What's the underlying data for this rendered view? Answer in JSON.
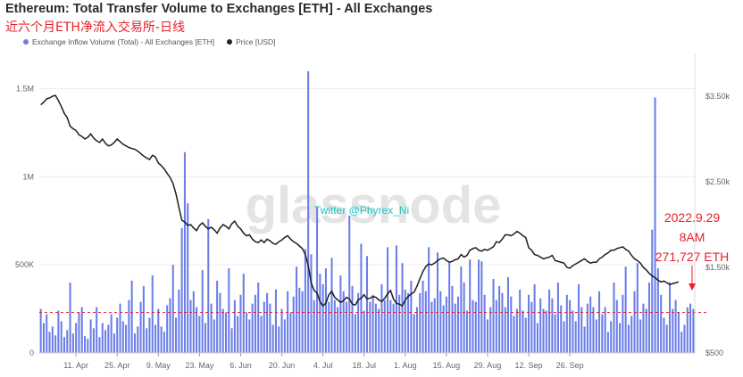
{
  "title": "Ethereum: Total Transfer Volume to Exchanges [ETH] - All Exchanges",
  "subtitle": "近六个月ETH净流入交易所-日线",
  "watermark": "glassnode",
  "twitter": "Twitter @Phyrex_Ni",
  "legend": [
    {
      "label": "Exchange Inflow Volume (Total) - All Exchanges [ETH]",
      "color": "#6a7de8"
    },
    {
      "label": "Price [USD]",
      "color": "#222222"
    }
  ],
  "annotation": {
    "date": "2022.9.29",
    "time": "8AM",
    "value": "271,727 ETH"
  },
  "chart_data": {
    "type": "bar",
    "x_tick_labels": [
      "11. Apr",
      "25. Apr",
      "9. May",
      "23. May",
      "6. Jun",
      "20. Jun",
      "4. Jul",
      "18. Jul",
      "1. Aug",
      "15. Aug",
      "29. Aug",
      "12. Sep",
      "26. Sep"
    ],
    "y_left_ticks": [
      "0",
      "500K",
      "1M",
      "1.5M"
    ],
    "y_right_ticks": [
      "$500",
      "$1.50k",
      "$2.50k",
      "$3.50k"
    ],
    "ylim_left": [
      0,
      1700000
    ],
    "ylim_right": [
      500,
      4000
    ],
    "reference_line": 230000,
    "series": [
      {
        "name": "Exchange Inflow Volume (Total) - All Exchanges [ETH]",
        "type": "bar",
        "color": "#6a7de8",
        "start": "2022-03-30",
        "values": [
          250000,
          170000,
          220000,
          120000,
          150000,
          100000,
          240000,
          180000,
          90000,
          130000,
          400000,
          110000,
          170000,
          230000,
          260000,
          95000,
          80000,
          190000,
          140000,
          260000,
          90000,
          170000,
          130000,
          160000,
          220000,
          110000,
          200000,
          280000,
          180000,
          160000,
          300000,
          410000,
          110000,
          150000,
          290000,
          380000,
          140000,
          200000,
          440000,
          160000,
          250000,
          150000,
          120000,
          270000,
          310000,
          500000,
          200000,
          360000,
          710000,
          1140000,
          850000,
          300000,
          350000,
          260000,
          210000,
          470000,
          170000,
          760000,
          280000,
          190000,
          410000,
          340000,
          250000,
          230000,
          480000,
          140000,
          300000,
          210000,
          330000,
          450000,
          230000,
          190000,
          280000,
          330000,
          400000,
          210000,
          290000,
          340000,
          280000,
          160000,
          360000,
          150000,
          250000,
          190000,
          350000,
          230000,
          320000,
          490000,
          370000,
          350000,
          590000,
          1600000,
          560000,
          300000,
          830000,
          450000,
          390000,
          480000,
          290000,
          540000,
          300000,
          260000,
          440000,
          350000,
          290000,
          780000,
          380000,
          220000,
          340000,
          620000,
          240000,
          550000,
          290000,
          330000,
          280000,
          250000,
          390000,
          300000,
          600000,
          300000,
          280000,
          610000,
          330000,
          510000,
          360000,
          340000,
          410000,
          220000,
          260000,
          340000,
          410000,
          350000,
          600000,
          290000,
          310000,
          570000,
          350000,
          270000,
          320000,
          520000,
          380000,
          280000,
          320000,
          490000,
          400000,
          240000,
          530000,
          300000,
          290000,
          530000,
          520000,
          330000,
          190000,
          260000,
          420000,
          300000,
          380000,
          340000,
          260000,
          430000,
          320000,
          210000,
          250000,
          360000,
          240000,
          200000,
          330000,
          290000,
          390000,
          170000,
          310000,
          250000,
          240000,
          360000,
          310000,
          220000,
          400000,
          270000,
          180000,
          330000,
          300000,
          240000,
          180000,
          390000,
          260000,
          150000,
          280000,
          320000,
          260000,
          190000,
          350000,
          220000,
          260000,
          120000,
          180000,
          400000,
          300000,
          170000,
          330000,
          490000,
          160000,
          210000,
          350000,
          510000,
          190000,
          280000,
          250000,
          400000,
          700000,
          1450000,
          480000,
          330000,
          200000,
          160000,
          400000,
          250000,
          300000,
          230000,
          120000,
          160000,
          260000,
          280000,
          250000
        ]
      },
      {
        "name": "Price [USD]",
        "type": "line",
        "color": "#222222",
        "start": "2022-03-30",
        "values": [
          3400,
          3430,
          3470,
          3480,
          3500,
          3510,
          3450,
          3380,
          3300,
          3250,
          3150,
          3120,
          3100,
          3050,
          3030,
          3000,
          3020,
          3060,
          3010,
          2980,
          2960,
          3000,
          2950,
          2920,
          2930,
          2960,
          3000,
          2970,
          2940,
          2920,
          2900,
          2890,
          2880,
          2860,
          2830,
          2800,
          2780,
          2760,
          2810,
          2790,
          2720,
          2690,
          2650,
          2600,
          2550,
          2480,
          2360,
          2200,
          2050,
          2030,
          1990,
          2000,
          1960,
          1930,
          1990,
          2020,
          1980,
          1950,
          1970,
          1940,
          1900,
          1960,
          2000,
          1980,
          1950,
          2010,
          2040,
          1980,
          1950,
          1900,
          1870,
          1880,
          1830,
          1800,
          1790,
          1820,
          1790,
          1830,
          1810,
          1780,
          1770,
          1800,
          1820,
          1850,
          1870,
          1830,
          1800,
          1780,
          1750,
          1720,
          1650,
          1520,
          1320,
          1230,
          1200,
          1100,
          1050,
          1080,
          1180,
          1220,
          1150,
          1120,
          1090,
          1110,
          1150,
          1130,
          1070,
          1060,
          1120,
          1140,
          1180,
          1130,
          1140,
          1160,
          1150,
          1120,
          1100,
          1140,
          1190,
          1230,
          1130,
          1080,
          1070,
          1050,
          1120,
          1160,
          1190,
          1210,
          1280,
          1370,
          1450,
          1510,
          1540,
          1530,
          1550,
          1580,
          1600,
          1610,
          1580,
          1560,
          1570,
          1590,
          1600,
          1650,
          1620,
          1640,
          1700,
          1720,
          1730,
          1700,
          1690,
          1710,
          1700,
          1720,
          1740,
          1800,
          1790,
          1830,
          1880,
          1880,
          1870,
          1890,
          1920,
          1900,
          1870,
          1850,
          1730,
          1700,
          1650,
          1640,
          1620,
          1600,
          1610,
          1620,
          1640,
          1580,
          1570,
          1560,
          1550,
          1500,
          1490,
          1520,
          1540,
          1560,
          1580,
          1600,
          1570,
          1550,
          1560,
          1560,
          1600,
          1620,
          1650,
          1670,
          1700,
          1700,
          1720,
          1730,
          1740,
          1710,
          1690,
          1640,
          1600,
          1580,
          1550,
          1500,
          1470,
          1430,
          1400,
          1380,
          1350,
          1330,
          1340,
          1320,
          1300,
          1310,
          1320,
          1330
        ]
      }
    ]
  }
}
